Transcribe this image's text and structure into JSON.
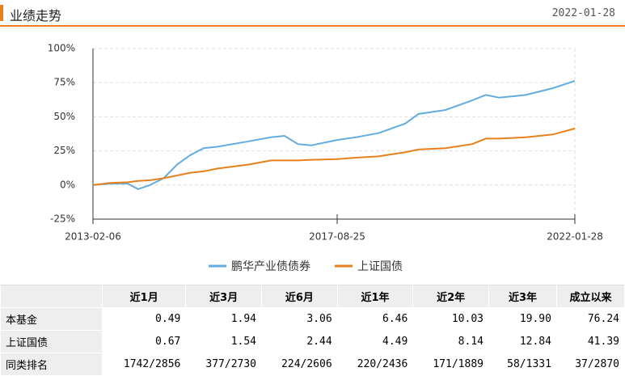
{
  "header": {
    "title": "业绩走势",
    "date": "2022-01-28"
  },
  "chart_data": {
    "type": "line",
    "x": [
      "2013-02-06",
      "2013-06-01",
      "2013-10-01",
      "2013-12-10",
      "2014-03-01",
      "2014-06-01",
      "2014-09-01",
      "2014-12-01",
      "2015-03-01",
      "2015-06-01",
      "2016-01-01",
      "2016-06-01",
      "2016-09-01",
      "2016-12-01",
      "2017-03-01",
      "2017-08-25",
      "2018-01-01",
      "2018-06-01",
      "2018-12-01",
      "2019-03-01",
      "2019-09-01",
      "2020-03-01",
      "2020-06-01",
      "2020-09-01",
      "2021-03-01",
      "2021-09-01",
      "2022-01-28"
    ],
    "series": [
      {
        "name": "鹏华产业债债券",
        "color": "#62acdf",
        "values": [
          0,
          1,
          1,
          -3,
          0,
          5,
          15,
          22,
          27,
          28,
          32,
          35,
          36,
          30,
          29,
          33,
          35,
          38,
          45,
          52,
          55,
          62,
          66,
          64,
          66,
          71,
          76.24
        ]
      },
      {
        "name": "上证国债",
        "color": "#e8801c",
        "values": [
          0,
          1.5,
          2,
          3,
          3.5,
          5,
          7,
          9,
          10,
          12,
          15,
          18,
          18,
          18,
          18.5,
          19,
          20,
          21,
          24,
          26,
          27,
          30,
          34,
          34,
          35,
          37,
          41.39
        ]
      }
    ],
    "xlim": [
      "2013-02-06",
      "2022-01-28"
    ],
    "xticks": [
      "2013-02-06",
      "2017-08-25",
      "2022-01-28"
    ],
    "ylim": [
      -25,
      100
    ],
    "yticks": [
      {
        "value": -25,
        "label": "-25%"
      },
      {
        "value": 0,
        "label": "0%"
      },
      {
        "value": 25,
        "label": "25%"
      },
      {
        "value": 50,
        "label": "50%"
      },
      {
        "value": 75,
        "label": "75%"
      },
      {
        "value": 100,
        "label": "100%"
      }
    ],
    "grid": true,
    "legend": "bottom"
  },
  "table": {
    "columns": [
      "",
      "近1月",
      "近3月",
      "近6月",
      "近1年",
      "近2年",
      "近3年",
      "成立以来"
    ],
    "rows": [
      [
        "本基金",
        "0.49",
        "1.94",
        "3.06",
        "6.46",
        "10.03",
        "19.90",
        "76.24"
      ],
      [
        "上证国债",
        "0.67",
        "1.54",
        "2.44",
        "4.49",
        "8.14",
        "12.84",
        "41.39"
      ],
      [
        "同类排名",
        "1742/2856",
        "377/2730",
        "224/2606",
        "220/2436",
        "171/1889",
        "58/1331",
        "37/2870"
      ]
    ]
  }
}
